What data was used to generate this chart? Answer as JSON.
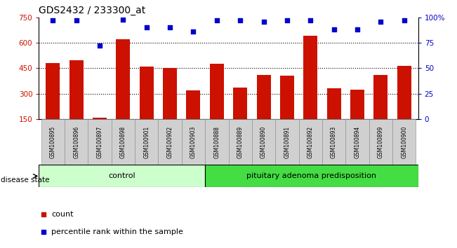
{
  "title": "GDS2432 / 233300_at",
  "samples": [
    "GSM100895",
    "GSM100896",
    "GSM100897",
    "GSM100898",
    "GSM100901",
    "GSM100902",
    "GSM100903",
    "GSM100888",
    "GSM100889",
    "GSM100890",
    "GSM100891",
    "GSM100892",
    "GSM100893",
    "GSM100894",
    "GSM100899",
    "GSM100900"
  ],
  "counts": [
    480,
    495,
    158,
    620,
    460,
    450,
    320,
    475,
    335,
    410,
    408,
    640,
    330,
    322,
    410,
    462
  ],
  "percentiles": [
    97,
    97,
    72,
    98,
    90,
    90,
    86,
    97,
    97,
    96,
    97,
    97,
    88,
    88,
    96,
    97
  ],
  "n_control": 7,
  "n_pituitary": 9,
  "ylim_left": [
    150,
    750
  ],
  "ylim_right": [
    0,
    100
  ],
  "yticks_left": [
    150,
    300,
    450,
    600,
    750
  ],
  "yticks_right": [
    0,
    25,
    50,
    75,
    100
  ],
  "bar_color": "#cc1100",
  "dot_color": "#0000cc",
  "tick_color_left": "#cc1100",
  "tick_color_right": "#0000cc",
  "gridlines": [
    300,
    450,
    600
  ],
  "legend_count_label": "count",
  "legend_pct_label": "percentile rank within the sample",
  "control_color": "#ccffcc",
  "pituitary_color": "#44dd44"
}
